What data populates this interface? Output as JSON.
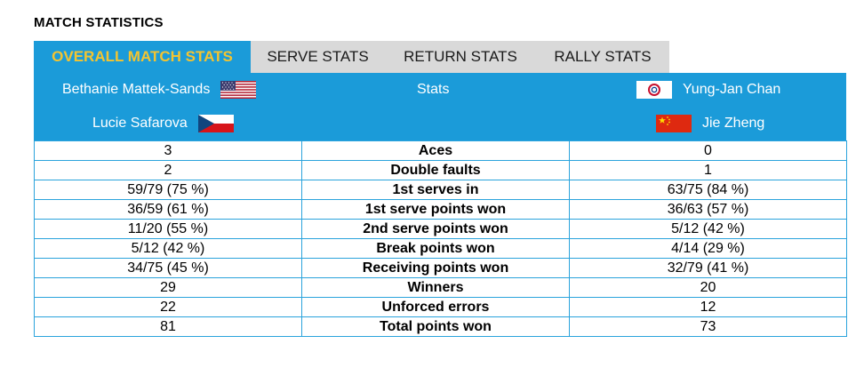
{
  "page": {
    "title": "MATCH STATISTICS"
  },
  "tabs": [
    {
      "label": "OVERALL MATCH STATS",
      "active": true
    },
    {
      "label": "SERVE STATS",
      "active": false
    },
    {
      "label": "RETURN STATS",
      "active": false
    },
    {
      "label": "RALLY STATS",
      "active": false
    }
  ],
  "header": {
    "left_players": [
      {
        "name": "Bethanie Mattek-Sands",
        "flag": "usa-flag-icon"
      },
      {
        "name": "Lucie Safarova",
        "flag": "czech-flag-icon"
      }
    ],
    "center_label": "Stats",
    "right_players": [
      {
        "name": "Yung-Jan Chan",
        "flag": "chinese-taipei-flag-icon"
      },
      {
        "name": "Jie Zheng",
        "flag": "china-flag-icon"
      }
    ]
  },
  "stats": [
    {
      "left": "3",
      "label": "Aces",
      "right": "0"
    },
    {
      "left": "2",
      "label": "Double faults",
      "right": "1"
    },
    {
      "left": "59/79 (75 %)",
      "label": "1st serves in",
      "right": "63/75 (84 %)"
    },
    {
      "left": "36/59 (61 %)",
      "label": "1st serve points won",
      "right": "36/63 (57 %)"
    },
    {
      "left": "11/20 (55 %)",
      "label": "2nd serve points won",
      "right": "5/12 (42 %)"
    },
    {
      "left": "5/12 (42 %)",
      "label": "Break points won",
      "right": "4/14 (29 %)"
    },
    {
      "left": "34/75 (45 %)",
      "label": "Receiving points won",
      "right": "32/79 (41 %)"
    },
    {
      "left": "29",
      "label": "Winners",
      "right": "20"
    },
    {
      "left": "22",
      "label": "Unforced errors",
      "right": "12"
    },
    {
      "left": "81",
      "label": "Total points won",
      "right": "73"
    }
  ],
  "colors": {
    "accent": "#1b9bd9",
    "active_tab_text": "#f4c430",
    "inactive_tab_bg": "#d9d9d9",
    "border": "#2aa3dc"
  }
}
